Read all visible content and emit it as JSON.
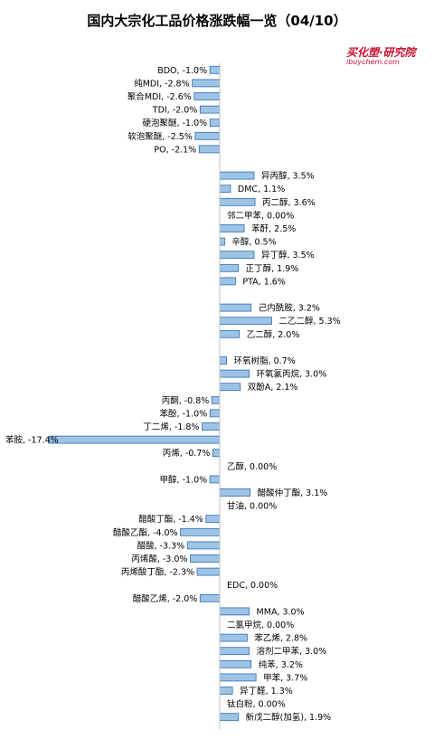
{
  "title": "国内大宗化工品价格涨跌幅一览（04/10）",
  "logo": {
    "main": "买化塑·研究院",
    "sub": "ibuychem.com"
  },
  "colors": {
    "bar_fill": "#9dc3e6",
    "bar_stroke": "#2f6eb0"
  },
  "chart_data": {
    "type": "bar",
    "orientation": "horizontal",
    "title": "国内大宗化工品价格涨跌幅一览（04/10）",
    "xlabel": "",
    "ylabel": "",
    "xlim": [
      -20,
      20
    ],
    "x_ticks": [
      -20,
      -15,
      -10,
      -5,
      0,
      5,
      10,
      15,
      20
    ],
    "x_tick_labels": [
      "-20.0%",
      "-15.0%",
      "-10.0%",
      "-5.0%",
      "0.0%",
      "5.0%",
      "10.0%",
      "15.0%",
      "20.0%"
    ],
    "grid": false,
    "legend": "none",
    "categories": [
      "BDO",
      "纯MDI",
      "聚合MDI",
      "TDI",
      "硬泡聚醚",
      "软泡聚醚",
      "PO",
      "",
      "异丙醇",
      "DMC",
      "丙二醇",
      "邻二甲苯",
      "苯酐",
      "辛醇",
      "异丁醇",
      "正丁醇",
      "PTA",
      "",
      "己内酰胺",
      "二乙二醇",
      "乙二醇",
      "",
      "环氧树脂",
      "环氧氯丙烷",
      "双酚A",
      "丙酮",
      "苯酚",
      "丁二烯",
      "苯胺",
      "丙烯",
      "乙醇",
      "甲醇",
      "醋酸仲丁酯",
      "甘油",
      "醋酸丁酯",
      "醋酸乙酯",
      "醋酸",
      "丙烯酸",
      "丙烯酸丁酯",
      "EDC",
      "醋酸乙烯",
      "MMA",
      "二氯甲烷",
      "苯乙烯",
      "溶剂二甲苯",
      "纯苯",
      "甲苯",
      "异丁醛",
      "钛白粉",
      "新戊二醇(加氢)"
    ],
    "values": [
      -1.0,
      -2.8,
      -2.6,
      -2.0,
      -1.0,
      -2.5,
      -2.1,
      null,
      3.5,
      1.1,
      3.6,
      0.0,
      2.5,
      0.5,
      3.5,
      1.9,
      1.6,
      null,
      3.2,
      5.3,
      2.0,
      null,
      0.7,
      3.0,
      2.1,
      -0.8,
      -1.0,
      -1.8,
      -17.4,
      -0.7,
      0.0,
      -1.0,
      3.1,
      0.0,
      -1.4,
      -4.0,
      -3.3,
      -3.0,
      -2.3,
      0.0,
      -2.0,
      3.0,
      0.0,
      2.8,
      3.0,
      3.2,
      3.7,
      1.3,
      0.0,
      1.9
    ],
    "data_labels": [
      "BDO, -1.0%",
      "纯MDI, -2.8%",
      "聚合MDI, -2.6%",
      "TDI, -2.0%",
      "硬泡聚醚, -1.0%",
      "软泡聚醚, -2.5%",
      "PO, -2.1%",
      "",
      "异丙醇, 3.5%",
      "DMC, 1.1%",
      "丙二醇, 3.6%",
      "邻二甲苯, 0.00%",
      "苯酐, 2.5%",
      "辛醇, 0.5%",
      "异丁醇, 3.5%",
      "正丁醇, 1.9%",
      "PTA, 1.6%",
      "",
      "己内酰胺, 3.2%",
      "二乙二醇, 5.3%",
      "乙二醇, 2.0%",
      "",
      "环氧树脂, 0.7%",
      "环氧氯丙烷, 3.0%",
      "双酚A, 2.1%",
      "丙酮, -0.8%",
      "苯酚, -1.0%",
      "丁二烯, -1.8%",
      "苯胺, -17.4%",
      "丙烯, -0.7%",
      "乙醇, 0.00%",
      "甲醇, -1.0%",
      "醋酸仲丁酯, 3.1%",
      "甘油, 0.00%",
      "醋酸丁酯, -1.4%",
      "醋酸乙酯, -4.0%",
      "醋酸, -3.3%",
      "丙烯酸, -3.0%",
      "丙烯酸丁酯, -2.3%",
      "EDC, 0.00%",
      "醋酸乙烯, -2.0%",
      "MMA, 3.0%",
      "二氯甲烷, 0.00%",
      "苯乙烯, 2.8%",
      "溶剂二甲苯, 3.0%",
      "纯苯, 3.2%",
      "甲苯, 3.7%",
      "异丁醛, 1.3%",
      "钛白粉, 0.00%",
      "新戊二醇(加氢), 1.9%"
    ]
  }
}
